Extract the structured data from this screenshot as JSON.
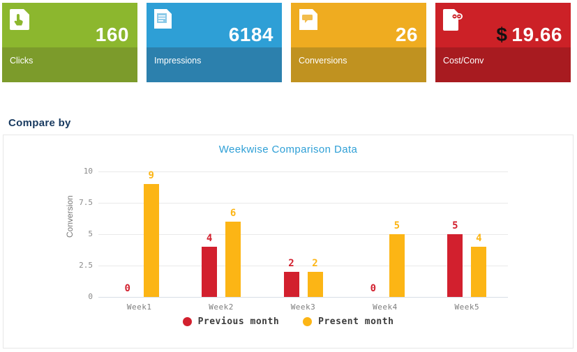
{
  "cards": [
    {
      "label": "Clicks",
      "value": "160",
      "prefix": "",
      "icon": "click-page-icon",
      "color": "#8cb72e",
      "color_dark": "#7c9b2b"
    },
    {
      "label": "Impressions",
      "value": "6184",
      "prefix": "",
      "icon": "report-page-icon",
      "color": "#2e9fd6",
      "color_dark": "#2c80ad"
    },
    {
      "label": "Conversions",
      "value": "26",
      "prefix": "",
      "icon": "chat-page-icon",
      "color": "#efac20",
      "color_dark": "#c09220"
    },
    {
      "label": "Cost/Conv",
      "value": "19.66",
      "prefix": "$",
      "icon": "money-page-icon",
      "color": "#cc2127",
      "color_dark": "#a81b20"
    }
  ],
  "compare_by_label": "Compare by",
  "chart_data": {
    "type": "bar",
    "title": "Weekwise Comparison Data",
    "title_color": "#2e9fd6",
    "xlabel": "",
    "ylabel": "Conversion",
    "categories": [
      "Week1",
      "Week2",
      "Week3",
      "Week4",
      "Week5"
    ],
    "series": [
      {
        "name": "Previous month",
        "color": "#d2202e",
        "values": [
          0,
          4,
          2,
          0,
          5
        ]
      },
      {
        "name": "Present month",
        "color": "#fcb515",
        "values": [
          9,
          6,
          2,
          5,
          4
        ]
      }
    ],
    "ylim": [
      0,
      10
    ],
    "yticks": [
      0,
      2.5,
      5,
      7.5,
      10
    ],
    "grid": true,
    "legend_position": "bottom"
  }
}
